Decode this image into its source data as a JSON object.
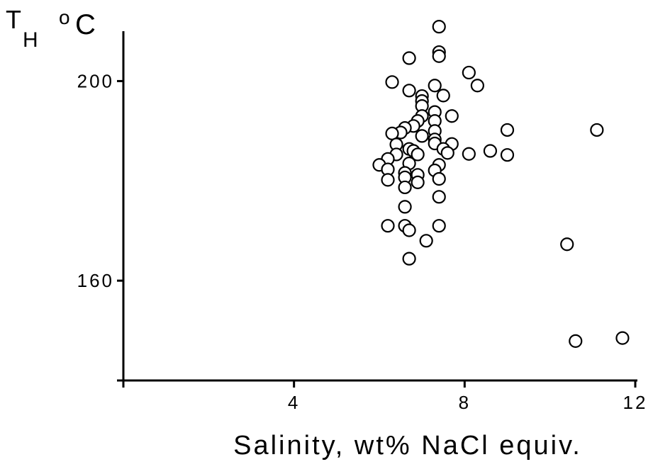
{
  "chart_data": {
    "type": "scatter",
    "title": "",
    "xlabel": "Salinity, wt% NaCl equiv.",
    "ylabel": {
      "main": "T",
      "subscript": "H",
      "superscript": "o",
      "unit": "C"
    },
    "xlim": [
      0,
      12
    ],
    "ylim": [
      140,
      210
    ],
    "xticks": [
      0,
      4,
      8,
      12
    ],
    "xtick_labels": [
      "4",
      "8",
      "12"
    ],
    "xtick_label_values": [
      4,
      8,
      12
    ],
    "yticks": [
      140,
      160,
      200
    ],
    "ytick_labels": [
      "200",
      "160"
    ],
    "ytick_label_values": [
      200,
      160
    ],
    "grid": false,
    "legend": "none",
    "marker": "open-circle",
    "points": [
      {
        "x": 7.4,
        "y": 210.9
      },
      {
        "x": 7.4,
        "y": 205.8
      },
      {
        "x": 7.4,
        "y": 205.0
      },
      {
        "x": 6.7,
        "y": 204.6
      },
      {
        "x": 8.1,
        "y": 201.7
      },
      {
        "x": 8.3,
        "y": 199.1
      },
      {
        "x": 6.3,
        "y": 199.8
      },
      {
        "x": 7.3,
        "y": 199.1
      },
      {
        "x": 6.7,
        "y": 198.1
      },
      {
        "x": 7.0,
        "y": 197.0
      },
      {
        "x": 7.5,
        "y": 197.1
      },
      {
        "x": 7.0,
        "y": 196.0
      },
      {
        "x": 7.0,
        "y": 195.0
      },
      {
        "x": 7.3,
        "y": 193.8
      },
      {
        "x": 7.0,
        "y": 193.0
      },
      {
        "x": 7.7,
        "y": 193.0
      },
      {
        "x": 7.3,
        "y": 192.0
      },
      {
        "x": 6.9,
        "y": 192.0
      },
      {
        "x": 6.8,
        "y": 191.0
      },
      {
        "x": 6.6,
        "y": 190.6
      },
      {
        "x": 7.3,
        "y": 190.0
      },
      {
        "x": 6.5,
        "y": 189.7
      },
      {
        "x": 9.0,
        "y": 190.2
      },
      {
        "x": 11.1,
        "y": 190.2
      },
      {
        "x": 6.3,
        "y": 189.5
      },
      {
        "x": 7.0,
        "y": 189.0
      },
      {
        "x": 7.3,
        "y": 188.3
      },
      {
        "x": 7.3,
        "y": 187.5
      },
      {
        "x": 6.4,
        "y": 187.3
      },
      {
        "x": 7.7,
        "y": 187.4
      },
      {
        "x": 7.5,
        "y": 186.4
      },
      {
        "x": 6.7,
        "y": 186.4
      },
      {
        "x": 6.8,
        "y": 186.0
      },
      {
        "x": 8.6,
        "y": 186.0
      },
      {
        "x": 7.6,
        "y": 185.6
      },
      {
        "x": 8.1,
        "y": 185.4
      },
      {
        "x": 9.0,
        "y": 185.2
      },
      {
        "x": 6.9,
        "y": 185.3
      },
      {
        "x": 6.4,
        "y": 185.3
      },
      {
        "x": 6.2,
        "y": 184.4
      },
      {
        "x": 6.7,
        "y": 183.5
      },
      {
        "x": 6.0,
        "y": 183.2
      },
      {
        "x": 7.4,
        "y": 183.2
      },
      {
        "x": 6.2,
        "y": 182.3
      },
      {
        "x": 7.3,
        "y": 182.1
      },
      {
        "x": 6.6,
        "y": 181.6
      },
      {
        "x": 6.9,
        "y": 181.2
      },
      {
        "x": 6.6,
        "y": 180.7
      },
      {
        "x": 6.2,
        "y": 180.2
      },
      {
        "x": 7.4,
        "y": 180.4
      },
      {
        "x": 6.9,
        "y": 179.7
      },
      {
        "x": 6.6,
        "y": 178.7
      },
      {
        "x": 7.4,
        "y": 176.8
      },
      {
        "x": 6.6,
        "y": 174.8
      },
      {
        "x": 6.2,
        "y": 171.0
      },
      {
        "x": 6.6,
        "y": 171.0
      },
      {
        "x": 7.4,
        "y": 171.0
      },
      {
        "x": 6.7,
        "y": 170.1
      },
      {
        "x": 7.1,
        "y": 168.0
      },
      {
        "x": 10.4,
        "y": 167.3
      },
      {
        "x": 6.7,
        "y": 164.4
      },
      {
        "x": 10.6,
        "y": 147.9
      },
      {
        "x": 11.7,
        "y": 148.5
      }
    ]
  }
}
